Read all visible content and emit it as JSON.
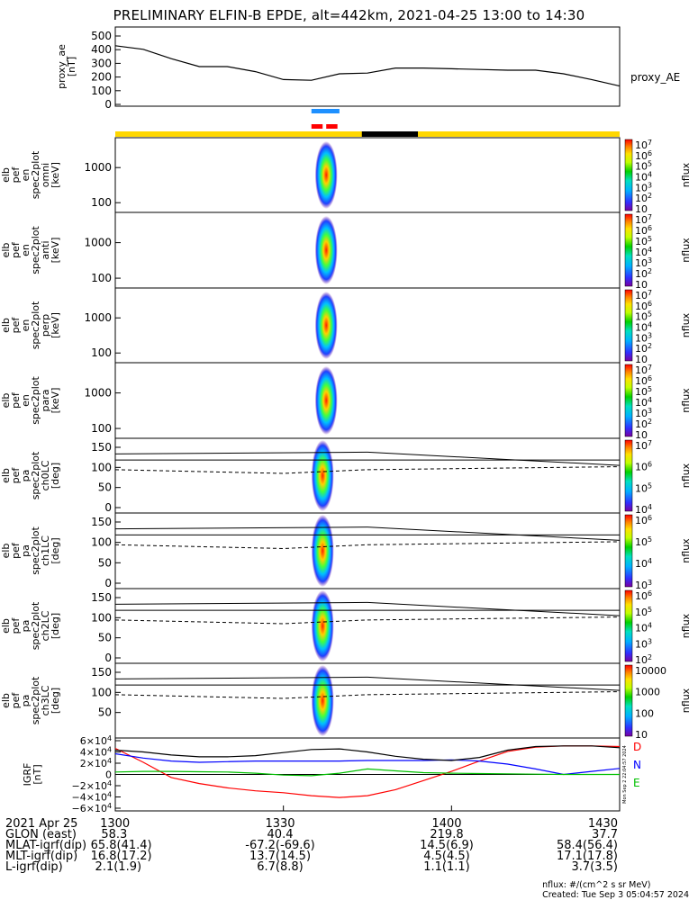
{
  "title": "PRELIMINARY ELFIN-B EPDE, alt=442km, 2021-04-25 13:00 to 14:30",
  "colors": {
    "ae_line": "#000000",
    "science_bar_blue": "#1e90ff",
    "science_bar_red": "#ff0000",
    "orbit_bar_yellow": "#ffd700",
    "orbit_bar_black": "#000000",
    "grf_D": "#ff0000",
    "grf_N": "#0000ff",
    "grf_E": "#00c000"
  },
  "time_axis": {
    "start": "13:00",
    "end": "14:30",
    "tick_labels": [
      "1300",
      "1330",
      "1400",
      "1430"
    ]
  },
  "panels": [
    {
      "id": "proxy_ae",
      "label_lines": [
        "proxy_ae",
        "[nT]"
      ],
      "yticks": [
        "500",
        "400",
        "300",
        "200",
        "100",
        "0"
      ],
      "right_label": "proxy_AE"
    },
    {
      "id": "en_omni",
      "label_lines": [
        "elb",
        "pef",
        "en",
        "spec2plot",
        "omni",
        "[keV]"
      ],
      "yticks": [
        "1000",
        "100"
      ],
      "colorbar_ticks": [
        "10^7",
        "10^6",
        "10^5",
        "10^4",
        "10^3",
        "10^2",
        "10"
      ],
      "colorbar_label": "nflux"
    },
    {
      "id": "en_anti",
      "label_lines": [
        "elb",
        "pef",
        "en",
        "spec2plot",
        "anti",
        "[keV]"
      ],
      "yticks": [
        "1000",
        "100"
      ],
      "colorbar_ticks": [
        "10^7",
        "10^6",
        "10^5",
        "10^4",
        "10^3",
        "10^2",
        "10"
      ],
      "colorbar_label": "nflux"
    },
    {
      "id": "en_perp",
      "label_lines": [
        "elb",
        "pef",
        "en",
        "spec2plot",
        "perp",
        "[keV]"
      ],
      "yticks": [
        "1000",
        "100"
      ],
      "colorbar_ticks": [
        "10^7",
        "10^6",
        "10^5",
        "10^4",
        "10^3",
        "10^2",
        "10"
      ],
      "colorbar_label": "nflux"
    },
    {
      "id": "en_para",
      "label_lines": [
        "elb",
        "pef",
        "en",
        "spec2plot",
        "para",
        "[keV]"
      ],
      "yticks": [
        "1000",
        "100"
      ],
      "colorbar_ticks": [
        "10^7",
        "10^6",
        "10^5",
        "10^4",
        "10^3",
        "10^2",
        "10"
      ],
      "colorbar_label": "nflux"
    },
    {
      "id": "pa_ch0",
      "label_lines": [
        "elb",
        "pef",
        "pa",
        "spec2plot",
        "ch0LC",
        "[deg]"
      ],
      "yticks": [
        "150",
        "100",
        "50",
        "0"
      ],
      "colorbar_ticks": [
        "10^7",
        "10^6",
        "10^5",
        "10^4"
      ],
      "colorbar_label": "nflux"
    },
    {
      "id": "pa_ch1",
      "label_lines": [
        "elb",
        "pef",
        "pa",
        "spec2plot",
        "ch1LC",
        "[deg]"
      ],
      "yticks": [
        "150",
        "100",
        "50",
        "0"
      ],
      "colorbar_ticks": [
        "10^6",
        "10^5",
        "10^4",
        "10^3"
      ],
      "colorbar_label": "nflux"
    },
    {
      "id": "pa_ch2",
      "label_lines": [
        "elb",
        "pef",
        "pa",
        "spec2plot",
        "ch2LC",
        "[deg]"
      ],
      "yticks": [
        "150",
        "100",
        "50",
        "0"
      ],
      "colorbar_ticks": [
        "10^6",
        "10^5",
        "10^4",
        "10^3",
        "10^2"
      ],
      "colorbar_label": "nflux"
    },
    {
      "id": "pa_ch3",
      "label_lines": [
        "elb",
        "pef",
        "pa",
        "spec2plot",
        "ch3LC",
        "[deg]"
      ],
      "yticks": [
        "150",
        "100",
        "50"
      ],
      "colorbar_ticks": [
        "10000",
        "1000",
        "100",
        "10"
      ],
      "colorbar_label": "nflux"
    },
    {
      "id": "igrf",
      "label_lines": [
        "IGRF",
        "[nT]"
      ],
      "yticks": [
        "6×10^4",
        "4×10^4",
        "2×10^4",
        "0",
        "−2×10^4",
        "−4×10^4",
        "−6×10^4"
      ],
      "right_labels": [
        "D",
        "N",
        "E"
      ],
      "side_text": "Mon Sep 2 22:04:57 2024"
    }
  ],
  "chart_data": [
    {
      "type": "line",
      "panel": "proxy_ae",
      "ylabel": "proxy_ae [nT]",
      "ylim": [
        0,
        550
      ],
      "x": [
        "13:00",
        "13:05",
        "13:10",
        "13:15",
        "13:20",
        "13:25",
        "13:30",
        "13:35",
        "13:40",
        "13:45",
        "13:50",
        "13:55",
        "14:00",
        "14:05",
        "14:10",
        "14:15",
        "14:20",
        "14:25",
        "14:30"
      ],
      "series": [
        {
          "name": "proxy_AE",
          "values": [
            420,
            395,
            330,
            275,
            275,
            240,
            185,
            180,
            225,
            230,
            265,
            265,
            260,
            255,
            250,
            250,
            225,
            185,
            140
          ]
        }
      ]
    },
    {
      "type": "line",
      "panel": "igrf",
      "ylabel": "IGRF [nT]",
      "ylim": [
        -60000,
        60000
      ],
      "x": [
        "13:00",
        "13:05",
        "13:10",
        "13:15",
        "13:20",
        "13:25",
        "13:30",
        "13:35",
        "13:40",
        "13:45",
        "13:50",
        "13:55",
        "14:00",
        "14:05",
        "14:10",
        "14:15",
        "14:20",
        "14:25",
        "14:30"
      ],
      "series": [
        {
          "name": "D",
          "values": [
            43000,
            20000,
            -5000,
            -15000,
            -22000,
            -27000,
            -30000,
            -35000,
            -38000,
            -35000,
            -25000,
            -10000,
            5000,
            22000,
            38000,
            45000,
            47000,
            47000,
            46000
          ]
        },
        {
          "name": "N",
          "values": [
            34000,
            27000,
            22000,
            20000,
            21000,
            22000,
            22000,
            22000,
            22000,
            23000,
            23000,
            23000,
            24000,
            22000,
            17000,
            9000,
            0,
            5000,
            10000
          ]
        },
        {
          "name": "E",
          "values": [
            4000,
            5000,
            5000,
            4500,
            4000,
            2000,
            -1000,
            -2000,
            2000,
            9000,
            6000,
            3000,
            2000,
            1500,
            1000,
            500,
            0,
            0,
            0
          ]
        },
        {
          "name": "",
          "values": [
            40000,
            37000,
            32000,
            29000,
            29000,
            31000,
            36000,
            41000,
            42000,
            37000,
            30000,
            25000,
            23000,
            28000,
            40000,
            46000,
            47000,
            47000,
            44000
          ]
        }
      ]
    }
  ],
  "bottom_table": {
    "rows": [
      {
        "label": "2021 Apr 25",
        "values": [
          "1300",
          "1330",
          "1400",
          "1430"
        ]
      },
      {
        "label": "GLON (east)",
        "values": [
          "58.3",
          "40.4",
          "219.8",
          "37.7"
        ]
      },
      {
        "label": "MLAT-igrf(dip)",
        "values": [
          "65.8(41.4)",
          "-67.2(-69.6)",
          "14.5(6.9)",
          "58.4(56.4)"
        ]
      },
      {
        "label": "MLT-igrf(dip)",
        "values": [
          "16.8(17.2)",
          "13.7(14.5)",
          "4.5(4.5)",
          "17.1(17.8)"
        ]
      },
      {
        "label": "L-igrf(dip)",
        "values": [
          "2.1(1.9)",
          "6.7(8.8)",
          "1.1(1.1)",
          "3.7(3.5)"
        ]
      }
    ]
  },
  "footer": {
    "units": "nflux: #/(cm^2 s sr MeV)",
    "created": "Created: Tue Sep  3 05:04:57 2024"
  }
}
